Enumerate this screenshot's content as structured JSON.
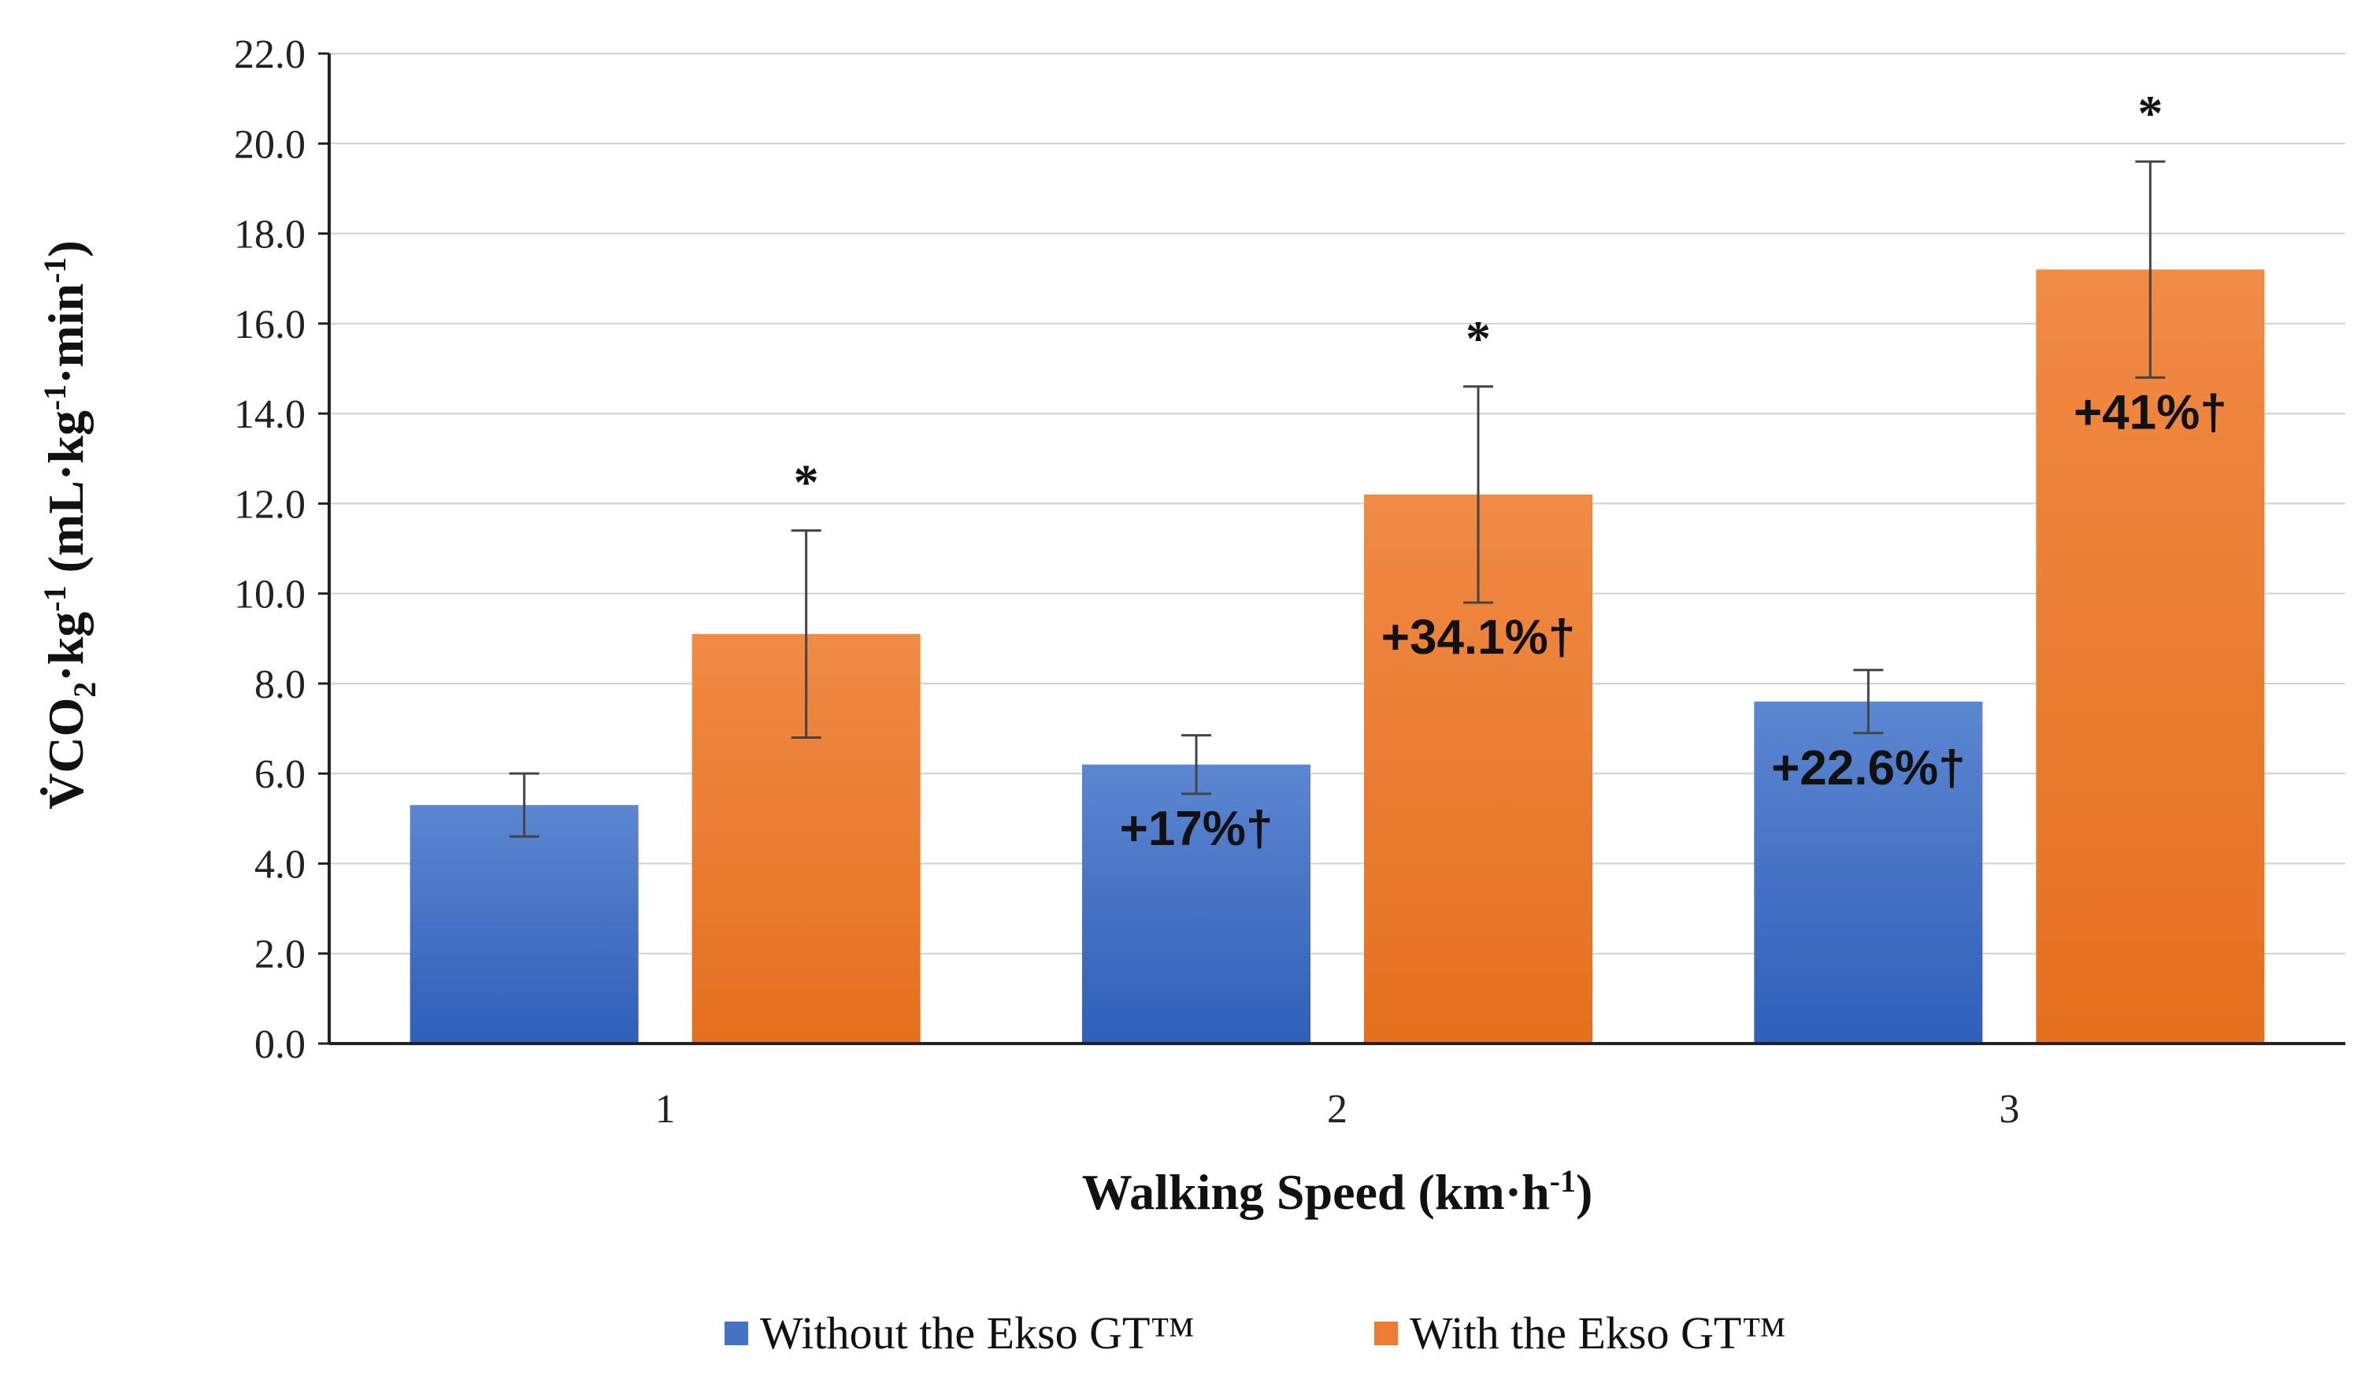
{
  "chart_data": {
    "type": "bar",
    "title": "",
    "xlabel": "Walking Speed (km·h",
    "xlabel_sup": "-1",
    "xlabel_suffix": ")",
    "ylabel_parts": [
      {
        "text": "V̇CO",
        "sup": false,
        "sub": false
      },
      {
        "text": "2",
        "sub": true
      },
      {
        "text": "·kg",
        "sup": false
      },
      {
        "text": "-1",
        "sup": true
      },
      {
        "text": " (mL·kg",
        "sup": false
      },
      {
        "text": "-1",
        "sup": true
      },
      {
        "text": "·min",
        "sup": false
      },
      {
        "text": "-1",
        "sup": true
      },
      {
        "text": ")",
        "sup": false
      }
    ],
    "categories": [
      "1",
      "2",
      "3"
    ],
    "ylim": [
      0,
      22
    ],
    "yticks": [
      "0.0",
      "2.0",
      "4.0",
      "6.0",
      "8.0",
      "10.0",
      "12.0",
      "14.0",
      "16.0",
      "18.0",
      "20.0",
      "22.0"
    ],
    "grid": true,
    "legend_position": "bottom",
    "series": [
      {
        "name": "Without the Ekso GT™",
        "color": "#4472C4",
        "values": [
          5.3,
          6.2,
          7.6
        ],
        "errors": [
          0.7,
          0.65,
          0.7
        ],
        "labels": [
          "",
          "+17%†",
          "+22.6%†"
        ],
        "stars": [
          "",
          "",
          ""
        ]
      },
      {
        "name": "With the Ekso GT™",
        "color": "#ED7D31",
        "values": [
          9.1,
          12.2,
          17.2
        ],
        "errors": [
          2.3,
          2.4,
          2.4
        ],
        "labels": [
          "",
          "+34.1%†",
          "+41%†"
        ],
        "stars": [
          "*",
          "*",
          "*"
        ]
      }
    ]
  }
}
